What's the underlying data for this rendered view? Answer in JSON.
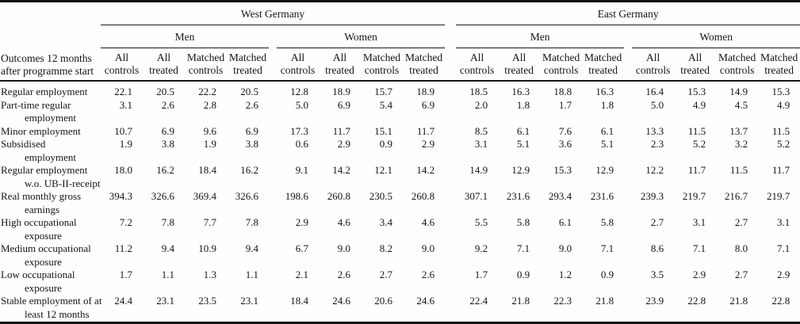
{
  "table": {
    "stub": {
      "line1": "Outcomes 12 months",
      "line2": "after programme start"
    },
    "regions": [
      {
        "label": "West Germany",
        "groups": [
          "Men",
          "Women"
        ]
      },
      {
        "label": "East Germany",
        "groups": [
          "Men",
          "Women"
        ]
      }
    ],
    "col_headers": [
      "All controls",
      "All treated",
      "Matched controls",
      "Matched treated"
    ],
    "rows": [
      {
        "label": "Regular employment",
        "label2": "",
        "values": [
          "22.1",
          "20.5",
          "22.2",
          "20.5",
          "12.8",
          "18.9",
          "15.7",
          "18.9",
          "18.5",
          "16.3",
          "18.8",
          "16.3",
          "16.4",
          "15.3",
          "14.9",
          "15.3"
        ]
      },
      {
        "label": "Part-time regular",
        "label2": "employment",
        "values": [
          "3.1",
          "2.6",
          "2.8",
          "2.6",
          "5.0",
          "6.9",
          "5.4",
          "6.9",
          "2.0",
          "1.8",
          "1.7",
          "1.8",
          "5.0",
          "4.9",
          "4.5",
          "4.9"
        ]
      },
      {
        "label": "Minor employment",
        "label2": "",
        "values": [
          "10.7",
          "6.9",
          "9.6",
          "6.9",
          "17.3",
          "11.7",
          "15.1",
          "11.7",
          "8.5",
          "6.1",
          "7.6",
          "6.1",
          "13.3",
          "11.5",
          "13.7",
          "11.5"
        ]
      },
      {
        "label": "Subsidised",
        "label2": "employment",
        "values": [
          "1.9",
          "3.8",
          "1.9",
          "3.8",
          "0.6",
          "2.9",
          "0.9",
          "2.9",
          "3.1",
          "5.1",
          "3.6",
          "5.1",
          "2.3",
          "5.2",
          "3.2",
          "5.2"
        ]
      },
      {
        "label": "Regular employment",
        "label2": "w.o. UB-II-receipt",
        "values": [
          "18.0",
          "16.2",
          "18.4",
          "16.2",
          "9.1",
          "14.2",
          "12.1",
          "14.2",
          "14.9",
          "12.9",
          "15.3",
          "12.9",
          "12.2",
          "11.7",
          "11.5",
          "11.7"
        ]
      },
      {
        "label": "Real monthly gross",
        "label2": "earnings",
        "values": [
          "394.3",
          "326.6",
          "369.4",
          "326.6",
          "198.6",
          "260.8",
          "230.5",
          "260.8",
          "307.1",
          "231.6",
          "293.4",
          "231.6",
          "239.3",
          "219.7",
          "216.7",
          "219.7"
        ]
      },
      {
        "label": "High occupational",
        "label2": "exposure",
        "values": [
          "7.2",
          "7.8",
          "7.7",
          "7.8",
          "2.9",
          "4.6",
          "3.4",
          "4.6",
          "5.5",
          "5.8",
          "6.1",
          "5.8",
          "2.7",
          "3.1",
          "2.7",
          "3.1"
        ]
      },
      {
        "label": "Medium occupational",
        "label2": "exposure",
        "values": [
          "11.2",
          "9.4",
          "10.9",
          "9.4",
          "6.7",
          "9.0",
          "8.2",
          "9.0",
          "9.2",
          "7.1",
          "9.0",
          "7.1",
          "8.6",
          "7.1",
          "8.0",
          "7.1"
        ]
      },
      {
        "label": "Low occupational",
        "label2": "exposure",
        "values": [
          "1.7",
          "1.1",
          "1.3",
          "1.1",
          "2.1",
          "2.6",
          "2.7",
          "2.6",
          "1.7",
          "0.9",
          "1.2",
          "0.9",
          "3.5",
          "2.9",
          "2.7",
          "2.9"
        ]
      },
      {
        "label": "Stable employment of at",
        "label2": "least 12 months",
        "values": [
          "24.4",
          "23.1",
          "23.5",
          "23.1",
          "18.4",
          "24.6",
          "20.6",
          "24.6",
          "22.4",
          "21.8",
          "22.3",
          "21.8",
          "23.9",
          "22.8",
          "21.8",
          "22.8"
        ]
      }
    ]
  }
}
